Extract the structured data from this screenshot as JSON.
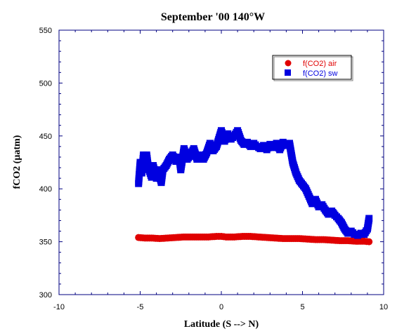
{
  "chart_data": {
    "type": "scatter",
    "title": "September '00 140°W",
    "xlabel": "Latitude (S --> N)",
    "ylabel": "fCO2 (µatm)",
    "xlim": [
      -10,
      10
    ],
    "ylim": [
      300,
      550
    ],
    "xticks": [
      -10,
      -5,
      0,
      5,
      10
    ],
    "yticks": [
      300,
      350,
      400,
      450,
      500,
      550
    ],
    "legend_position": "top-right",
    "series": [
      {
        "name": "f(CO2) air",
        "color": "#e00000",
        "marker": "circle",
        "points": [
          [
            -5.1,
            354
          ],
          [
            -4.7,
            353.5
          ],
          [
            -4.3,
            353.5
          ],
          [
            -3.8,
            353
          ],
          [
            -3.3,
            353.5
          ],
          [
            -2.8,
            354
          ],
          [
            -2.3,
            354.5
          ],
          [
            -1.8,
            354.5
          ],
          [
            -1.3,
            354.5
          ],
          [
            -0.8,
            354.5
          ],
          [
            -0.3,
            355
          ],
          [
            0.0,
            355
          ],
          [
            0.3,
            354.5
          ],
          [
            0.8,
            354.5
          ],
          [
            1.3,
            355
          ],
          [
            1.8,
            355
          ],
          [
            2.3,
            354.5
          ],
          [
            2.8,
            354
          ],
          [
            3.3,
            353.5
          ],
          [
            3.8,
            353
          ],
          [
            4.3,
            353
          ],
          [
            4.8,
            353
          ],
          [
            5.3,
            352.5
          ],
          [
            5.8,
            352
          ],
          [
            6.3,
            352
          ],
          [
            6.8,
            351.5
          ],
          [
            7.3,
            351
          ],
          [
            7.8,
            351
          ],
          [
            8.3,
            350.5
          ],
          [
            8.8,
            350.5
          ],
          [
            9.1,
            350
          ]
        ]
      },
      {
        "name": "f(CO2) sw",
        "color": "#0000e0",
        "marker": "square",
        "points": [
          [
            -5.1,
            405
          ],
          [
            -5.0,
            425
          ],
          [
            -4.9,
            415
          ],
          [
            -4.8,
            432
          ],
          [
            -4.6,
            432
          ],
          [
            -4.5,
            420
          ],
          [
            -4.3,
            411
          ],
          [
            -4.2,
            422
          ],
          [
            -4.0,
            410
          ],
          [
            -3.9,
            418
          ],
          [
            -3.7,
            406
          ],
          [
            -3.6,
            418
          ],
          [
            -3.4,
            422
          ],
          [
            -3.2,
            428
          ],
          [
            -3.0,
            432
          ],
          [
            -2.8,
            426
          ],
          [
            -2.6,
            430
          ],
          [
            -2.5,
            418
          ],
          [
            -2.3,
            438
          ],
          [
            -2.1,
            428
          ],
          [
            -1.9,
            432
          ],
          [
            -1.7,
            438
          ],
          [
            -1.5,
            428
          ],
          [
            -1.3,
            432
          ],
          [
            -1.1,
            428
          ],
          [
            -0.9,
            434
          ],
          [
            -0.7,
            443
          ],
          [
            -0.5,
            436
          ],
          [
            -0.3,
            440
          ],
          [
            -0.1,
            450
          ],
          [
            0.0,
            455
          ],
          [
            0.2,
            445
          ],
          [
            0.4,
            452
          ],
          [
            0.6,
            447
          ],
          [
            0.8,
            450
          ],
          [
            1.0,
            455
          ],
          [
            1.2,
            446
          ],
          [
            1.4,
            442
          ],
          [
            1.6,
            444
          ],
          [
            1.8,
            440
          ],
          [
            2.0,
            443
          ],
          [
            2.2,
            440
          ],
          [
            2.4,
            438
          ],
          [
            2.6,
            441
          ],
          [
            2.8,
            437
          ],
          [
            3.0,
            442
          ],
          [
            3.2,
            439
          ],
          [
            3.4,
            443
          ],
          [
            3.6,
            437
          ],
          [
            3.8,
            444
          ],
          [
            4.0,
            441
          ],
          [
            4.2,
            443
          ],
          [
            4.4,
            425
          ],
          [
            4.6,
            415
          ],
          [
            4.8,
            408
          ],
          [
            5.0,
            404
          ],
          [
            5.2,
            400
          ],
          [
            5.4,
            393
          ],
          [
            5.6,
            386
          ],
          [
            5.8,
            390
          ],
          [
            6.0,
            383
          ],
          [
            6.2,
            385
          ],
          [
            6.4,
            380
          ],
          [
            6.6,
            376
          ],
          [
            6.8,
            379
          ],
          [
            7.0,
            375
          ],
          [
            7.2,
            372
          ],
          [
            7.4,
            368
          ],
          [
            7.6,
            362
          ],
          [
            7.8,
            358
          ],
          [
            8.0,
            360
          ],
          [
            8.2,
            357
          ],
          [
            8.4,
            356
          ],
          [
            8.6,
            358
          ],
          [
            8.8,
            357
          ],
          [
            9.0,
            362
          ],
          [
            9.1,
            372
          ]
        ]
      }
    ]
  }
}
